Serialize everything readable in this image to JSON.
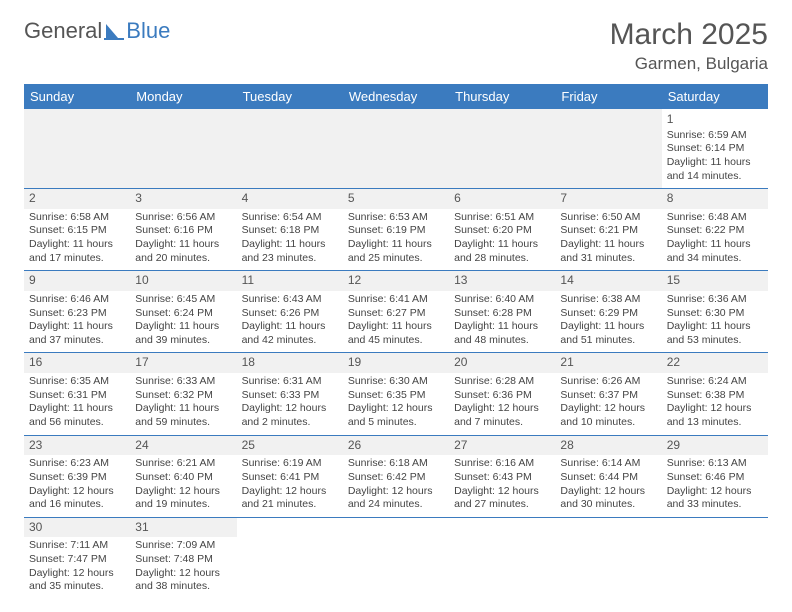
{
  "logo": {
    "text_a": "General",
    "text_b": "Blue",
    "shape_color": "#3b7bbf"
  },
  "title": "March 2025",
  "location": "Garmen, Bulgaria",
  "colors": {
    "header_bg": "#3b7bbf",
    "header_fg": "#ffffff",
    "row_divider": "#3b7bbf",
    "daynum_bg": "#f1f1f1"
  },
  "day_headers": [
    "Sunday",
    "Monday",
    "Tuesday",
    "Wednesday",
    "Thursday",
    "Friday",
    "Saturday"
  ],
  "weeks": [
    [
      null,
      null,
      null,
      null,
      null,
      null,
      {
        "n": 1,
        "sunrise": "6:59 AM",
        "sunset": "6:14 PM",
        "dl_h": 11,
        "dl_m": 14
      }
    ],
    [
      {
        "n": 2,
        "sunrise": "6:58 AM",
        "sunset": "6:15 PM",
        "dl_h": 11,
        "dl_m": 17
      },
      {
        "n": 3,
        "sunrise": "6:56 AM",
        "sunset": "6:16 PM",
        "dl_h": 11,
        "dl_m": 20
      },
      {
        "n": 4,
        "sunrise": "6:54 AM",
        "sunset": "6:18 PM",
        "dl_h": 11,
        "dl_m": 23
      },
      {
        "n": 5,
        "sunrise": "6:53 AM",
        "sunset": "6:19 PM",
        "dl_h": 11,
        "dl_m": 25
      },
      {
        "n": 6,
        "sunrise": "6:51 AM",
        "sunset": "6:20 PM",
        "dl_h": 11,
        "dl_m": 28
      },
      {
        "n": 7,
        "sunrise": "6:50 AM",
        "sunset": "6:21 PM",
        "dl_h": 11,
        "dl_m": 31
      },
      {
        "n": 8,
        "sunrise": "6:48 AM",
        "sunset": "6:22 PM",
        "dl_h": 11,
        "dl_m": 34
      }
    ],
    [
      {
        "n": 9,
        "sunrise": "6:46 AM",
        "sunset": "6:23 PM",
        "dl_h": 11,
        "dl_m": 37
      },
      {
        "n": 10,
        "sunrise": "6:45 AM",
        "sunset": "6:24 PM",
        "dl_h": 11,
        "dl_m": 39
      },
      {
        "n": 11,
        "sunrise": "6:43 AM",
        "sunset": "6:26 PM",
        "dl_h": 11,
        "dl_m": 42
      },
      {
        "n": 12,
        "sunrise": "6:41 AM",
        "sunset": "6:27 PM",
        "dl_h": 11,
        "dl_m": 45
      },
      {
        "n": 13,
        "sunrise": "6:40 AM",
        "sunset": "6:28 PM",
        "dl_h": 11,
        "dl_m": 48
      },
      {
        "n": 14,
        "sunrise": "6:38 AM",
        "sunset": "6:29 PM",
        "dl_h": 11,
        "dl_m": 51
      },
      {
        "n": 15,
        "sunrise": "6:36 AM",
        "sunset": "6:30 PM",
        "dl_h": 11,
        "dl_m": 53
      }
    ],
    [
      {
        "n": 16,
        "sunrise": "6:35 AM",
        "sunset": "6:31 PM",
        "dl_h": 11,
        "dl_m": 56
      },
      {
        "n": 17,
        "sunrise": "6:33 AM",
        "sunset": "6:32 PM",
        "dl_h": 11,
        "dl_m": 59
      },
      {
        "n": 18,
        "sunrise": "6:31 AM",
        "sunset": "6:33 PM",
        "dl_h": 12,
        "dl_m": 2
      },
      {
        "n": 19,
        "sunrise": "6:30 AM",
        "sunset": "6:35 PM",
        "dl_h": 12,
        "dl_m": 5
      },
      {
        "n": 20,
        "sunrise": "6:28 AM",
        "sunset": "6:36 PM",
        "dl_h": 12,
        "dl_m": 7
      },
      {
        "n": 21,
        "sunrise": "6:26 AM",
        "sunset": "6:37 PM",
        "dl_h": 12,
        "dl_m": 10
      },
      {
        "n": 22,
        "sunrise": "6:24 AM",
        "sunset": "6:38 PM",
        "dl_h": 12,
        "dl_m": 13
      }
    ],
    [
      {
        "n": 23,
        "sunrise": "6:23 AM",
        "sunset": "6:39 PM",
        "dl_h": 12,
        "dl_m": 16
      },
      {
        "n": 24,
        "sunrise": "6:21 AM",
        "sunset": "6:40 PM",
        "dl_h": 12,
        "dl_m": 19
      },
      {
        "n": 25,
        "sunrise": "6:19 AM",
        "sunset": "6:41 PM",
        "dl_h": 12,
        "dl_m": 21
      },
      {
        "n": 26,
        "sunrise": "6:18 AM",
        "sunset": "6:42 PM",
        "dl_h": 12,
        "dl_m": 24
      },
      {
        "n": 27,
        "sunrise": "6:16 AM",
        "sunset": "6:43 PM",
        "dl_h": 12,
        "dl_m": 27
      },
      {
        "n": 28,
        "sunrise": "6:14 AM",
        "sunset": "6:44 PM",
        "dl_h": 12,
        "dl_m": 30
      },
      {
        "n": 29,
        "sunrise": "6:13 AM",
        "sunset": "6:46 PM",
        "dl_h": 12,
        "dl_m": 33
      }
    ],
    [
      {
        "n": 30,
        "sunrise": "7:11 AM",
        "sunset": "7:47 PM",
        "dl_h": 12,
        "dl_m": 35
      },
      {
        "n": 31,
        "sunrise": "7:09 AM",
        "sunset": "7:48 PM",
        "dl_h": 12,
        "dl_m": 38
      },
      null,
      null,
      null,
      null,
      null
    ]
  ],
  "labels": {
    "sunrise": "Sunrise:",
    "sunset": "Sunset:",
    "daylight_prefix": "Daylight:",
    "hours_word": "hours",
    "and_word": "and",
    "minutes_word": "minutes."
  }
}
